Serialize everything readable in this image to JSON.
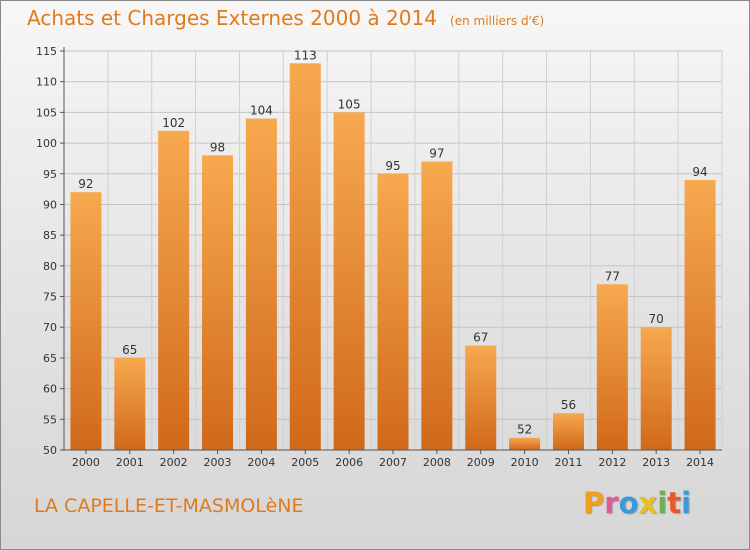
{
  "header": {
    "title": "Achats et Charges Externes 2000 à 2014",
    "unit": "(en milliers d'€)"
  },
  "footer": {
    "place": "LA CAPELLE-ET-MASMOLèNE",
    "logo_letters": [
      "P",
      "r",
      "o",
      "x",
      "i",
      "t",
      "i"
    ],
    "logo_colors": [
      "#f0a020",
      "#e05a9a",
      "#3a9ad9",
      "#e8c020",
      "#6ab04c",
      "#e8582a",
      "#3a9ad9"
    ]
  },
  "chart_data": {
    "type": "bar",
    "categories": [
      "2000",
      "2001",
      "2002",
      "2003",
      "2004",
      "2005",
      "2006",
      "2007",
      "2008",
      "2009",
      "2010",
      "2011",
      "2012",
      "2013",
      "2014"
    ],
    "values": [
      92,
      65,
      102,
      98,
      104,
      113,
      105,
      95,
      97,
      67,
      52,
      56,
      77,
      70,
      94
    ],
    "ylim": [
      50,
      115
    ],
    "yticks": [
      50,
      55,
      60,
      65,
      70,
      75,
      80,
      85,
      90,
      95,
      100,
      105,
      110,
      115
    ],
    "grid": true,
    "bar_color_light": "#f7a94e",
    "bar_color_dark": "#d0691a"
  }
}
